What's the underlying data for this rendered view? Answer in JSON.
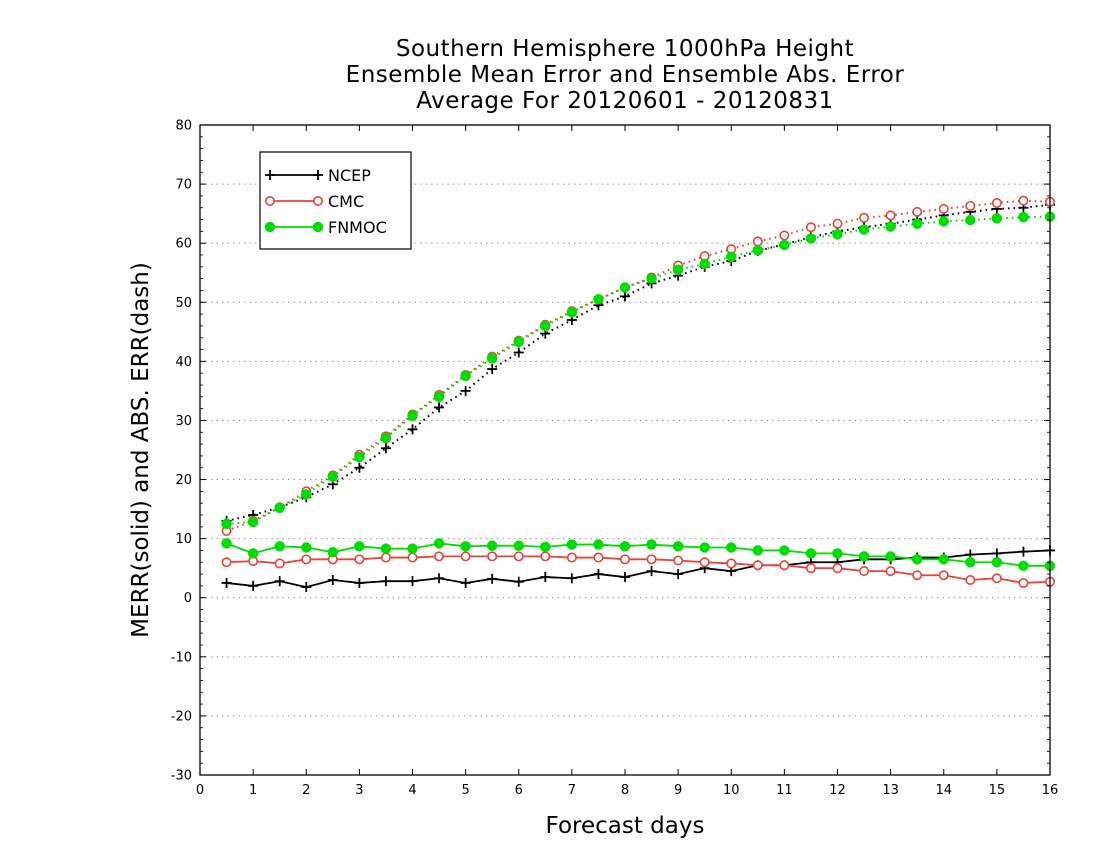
{
  "chart_data": {
    "type": "line",
    "title_lines": [
      "Southern Hemisphere 1000hPa Height",
      "Ensemble Mean Error and Ensemble Abs. Error",
      "Average For 20120601 - 20120831"
    ],
    "xlabel": "Forecast days",
    "ylabel": "MERR(solid) and ABS. ERR(dash)",
    "xlim": [
      0,
      16
    ],
    "ylim": [
      -30,
      80
    ],
    "xticks": [
      0,
      1,
      2,
      3,
      4,
      5,
      6,
      7,
      8,
      9,
      10,
      11,
      12,
      13,
      14,
      15,
      16
    ],
    "yticks": [
      -30,
      -20,
      -10,
      0,
      10,
      20,
      30,
      40,
      50,
      60,
      70,
      80
    ],
    "grid": "horizontal dotted",
    "legend": {
      "position": "top-left",
      "entries": [
        "NCEP",
        "CMC",
        "FNMOC"
      ]
    },
    "x": [
      0.5,
      1,
      1.5,
      2,
      2.5,
      3,
      3.5,
      4,
      4.5,
      5,
      5.5,
      6,
      6.5,
      7,
      7.5,
      8,
      8.5,
      9,
      9.5,
      10,
      10.5,
      11,
      11.5,
      12,
      12.5,
      13,
      13.5,
      14,
      14.5,
      15,
      15.5,
      16
    ],
    "series": [
      {
        "name": "NCEP",
        "kind": "merr",
        "line": "solid",
        "marker": "plus",
        "color": "#000000",
        "values": [
          2.5,
          2.0,
          2.8,
          1.8,
          3.0,
          2.5,
          2.8,
          2.8,
          3.3,
          2.5,
          3.2,
          2.7,
          3.5,
          3.3,
          4.0,
          3.5,
          4.5,
          4.0,
          5.0,
          4.5,
          5.5,
          5.5,
          6.0,
          6.0,
          6.5,
          6.5,
          6.8,
          6.8,
          7.3,
          7.5,
          7.8,
          8.0
        ]
      },
      {
        "name": "CMC",
        "kind": "merr",
        "line": "solid",
        "marker": "open-circle",
        "color": "#e8423c",
        "values": [
          6.0,
          6.2,
          5.8,
          6.5,
          6.5,
          6.5,
          6.8,
          6.8,
          7.0,
          7.0,
          7.0,
          7.0,
          7.0,
          6.8,
          6.8,
          6.5,
          6.5,
          6.3,
          6.0,
          5.8,
          5.5,
          5.5,
          5.0,
          5.0,
          4.5,
          4.5,
          3.8,
          3.8,
          3.0,
          3.3,
          2.5,
          2.7
        ]
      },
      {
        "name": "FNMOC",
        "kind": "merr",
        "line": "solid",
        "marker": "filled-circle",
        "color": "#00dd00",
        "values": [
          9.2,
          7.5,
          8.7,
          8.5,
          7.7,
          8.7,
          8.3,
          8.3,
          9.2,
          8.7,
          8.8,
          8.8,
          8.6,
          9.0,
          9.0,
          8.7,
          9.0,
          8.7,
          8.5,
          8.5,
          8.0,
          8.0,
          7.5,
          7.5,
          7.0,
          7.0,
          6.5,
          6.5,
          6.0,
          6.0,
          5.4,
          5.4
        ]
      },
      {
        "name": "NCEP",
        "kind": "abs_err",
        "line": "dotted",
        "marker": "plus",
        "color": "#000000",
        "values": [
          13.0,
          14.0,
          15.3,
          17.0,
          19.2,
          22.0,
          25.3,
          28.5,
          32.2,
          35.0,
          38.7,
          41.5,
          44.7,
          47.0,
          49.5,
          51.0,
          53.2,
          54.5,
          56.0,
          57.0,
          58.7,
          59.8,
          61.0,
          62.0,
          62.7,
          63.3,
          64.0,
          64.7,
          65.3,
          65.8,
          66.0,
          66.5
        ]
      },
      {
        "name": "CMC",
        "kind": "abs_err",
        "line": "dotted",
        "marker": "open-circle",
        "color": "#e8423c",
        "values": [
          11.3,
          13.0,
          15.3,
          18.0,
          20.7,
          24.2,
          27.3,
          31.0,
          34.3,
          37.7,
          40.8,
          43.5,
          46.2,
          48.5,
          50.5,
          52.5,
          54.2,
          56.2,
          57.8,
          59.0,
          60.3,
          61.3,
          62.7,
          63.3,
          64.3,
          64.7,
          65.3,
          65.8,
          66.3,
          66.8,
          67.2,
          67.0
        ]
      },
      {
        "name": "FNMOC",
        "kind": "abs_err",
        "line": "dotted",
        "marker": "filled-circle",
        "color": "#00dd00",
        "values": [
          12.5,
          12.8,
          15.2,
          17.5,
          20.5,
          23.8,
          27.0,
          30.8,
          34.0,
          37.5,
          40.5,
          43.3,
          46.0,
          48.3,
          50.5,
          52.5,
          54.0,
          55.5,
          56.5,
          57.7,
          58.8,
          59.7,
          60.8,
          61.5,
          62.3,
          62.8,
          63.3,
          63.7,
          63.9,
          64.2,
          64.4,
          64.5
        ]
      }
    ]
  }
}
